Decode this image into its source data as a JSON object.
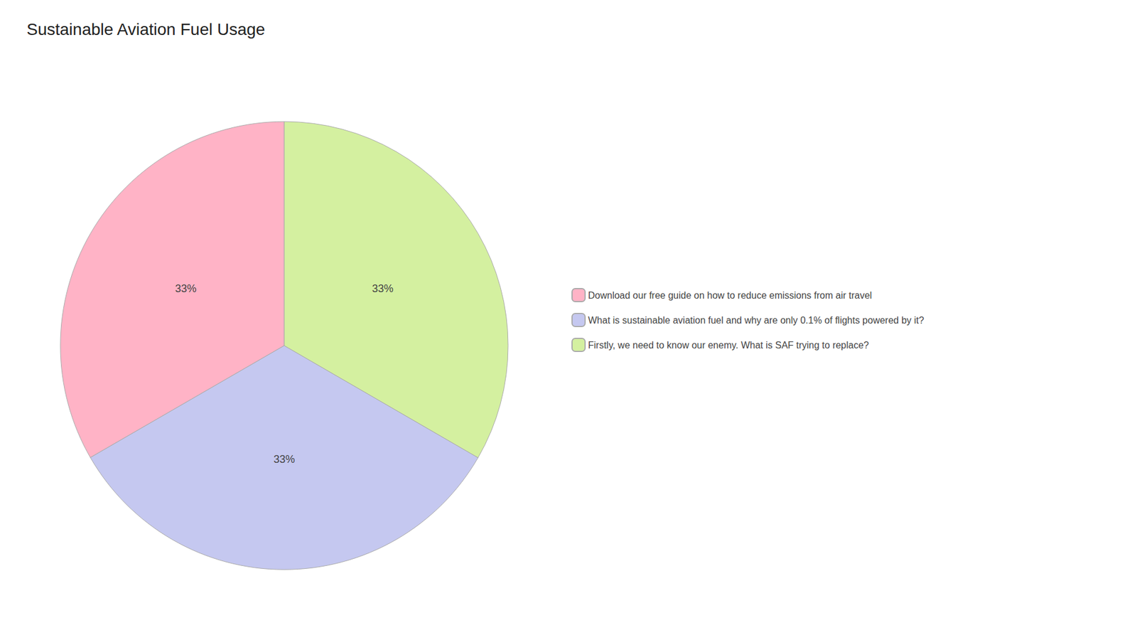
{
  "chart_data": {
    "type": "pie",
    "title": "Sustainable Aviation Fuel Usage",
    "categories": [
      "Download our free guide on how to reduce emissions from air travel",
      "What is sustainable aviation fuel and why are only 0.1% of flights powered by it?",
      "Firstly, we need to know our enemy. What is SAF trying to replace?"
    ],
    "values": [
      33.33,
      33.33,
      33.34
    ],
    "value_labels": [
      "33%",
      "33%",
      "33%"
    ],
    "colors": [
      "#ffb3c6",
      "#c5c8f0",
      "#d4f0a0"
    ],
    "data_labels": true,
    "legend": "right"
  }
}
